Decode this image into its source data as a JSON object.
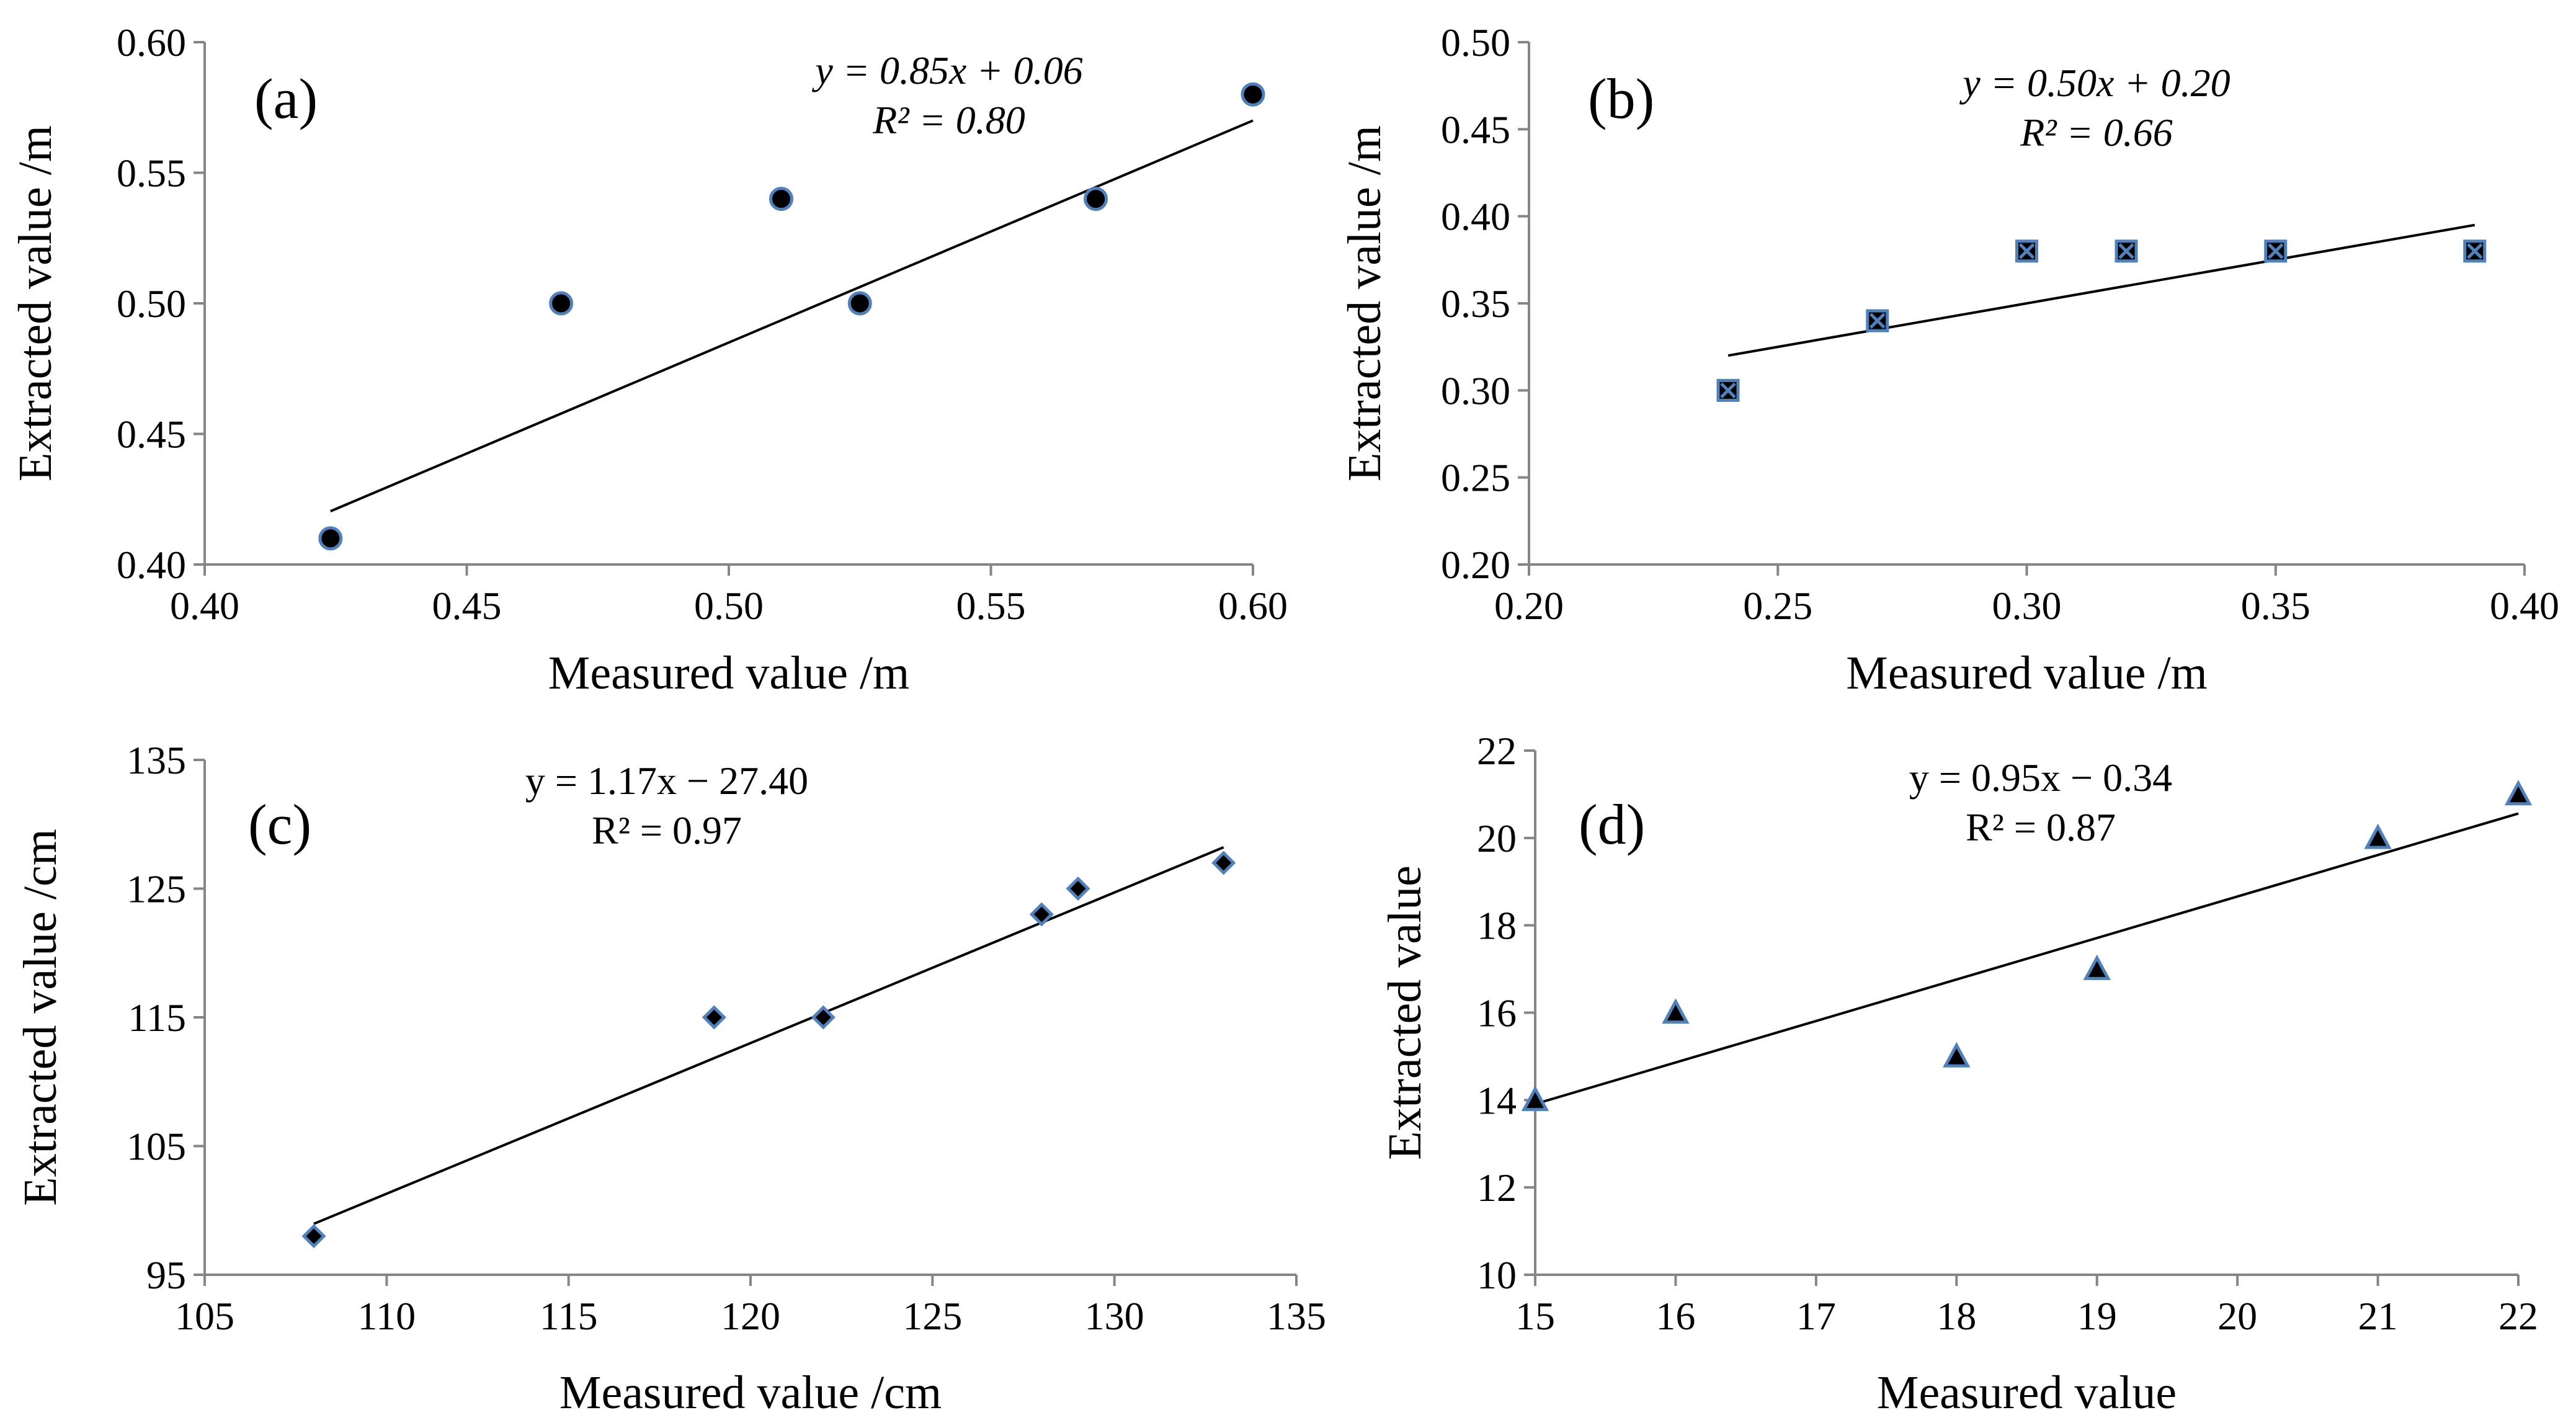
{
  "chart_data": [
    {
      "type": "scatter",
      "panel_label": "(a)",
      "xlabel": "Measured value /m",
      "ylabel": "Extracted value /m",
      "xlim": [
        0.4,
        0.6
      ],
      "ylim": [
        0.4,
        0.6
      ],
      "xticks": [
        "0.40",
        "0.45",
        "0.50",
        "0.55",
        "0.60"
      ],
      "yticks": [
        "0.40",
        "0.45",
        "0.50",
        "0.55",
        "0.60"
      ],
      "x": [
        0.424,
        0.468,
        0.51,
        0.525,
        0.57,
        0.6
      ],
      "y": [
        0.41,
        0.5,
        0.54,
        0.5,
        0.54,
        0.58
      ],
      "marker": "circle",
      "marker_color": "#000000",
      "marker_edge": "#4f81bd",
      "trendline": {
        "slope": 0.85,
        "intercept": 0.06,
        "x_range": [
          0.424,
          0.6
        ]
      },
      "equation": "y = 0.85x + 0.06",
      "r2": "R² = 0.80",
      "equation_style": "italic"
    },
    {
      "type": "scatter",
      "panel_label": "(b)",
      "xlabel": "Measured value /m",
      "ylabel": "Extracted value /m",
      "xlim": [
        0.2,
        0.4
      ],
      "ylim": [
        0.2,
        0.5
      ],
      "xticks": [
        "0.20",
        "0.25",
        "0.30",
        "0.35",
        "0.40"
      ],
      "yticks": [
        "0.20",
        "0.25",
        "0.30",
        "0.35",
        "0.40",
        "0.45",
        "0.50"
      ],
      "x": [
        0.24,
        0.27,
        0.3,
        0.32,
        0.35,
        0.39
      ],
      "y": [
        0.3,
        0.34,
        0.38,
        0.38,
        0.38,
        0.38
      ],
      "marker": "x-square",
      "marker_color": "#000000",
      "marker_edge": "#4f81bd",
      "trendline": {
        "slope": 0.5,
        "intercept": 0.2,
        "x_range": [
          0.24,
          0.39
        ]
      },
      "equation": "y = 0.50x + 0.20",
      "r2": "R² = 0.66",
      "equation_style": "italic"
    },
    {
      "type": "scatter",
      "panel_label": "(c)",
      "xlabel": "Measured value /cm",
      "ylabel": "Extracted value /cm",
      "xlim": [
        105,
        135
      ],
      "ylim": [
        95,
        135
      ],
      "xticks": [
        "105",
        "110",
        "115",
        "120",
        "125",
        "130",
        "135"
      ],
      "yticks": [
        "95",
        "105",
        "115",
        "125",
        "135"
      ],
      "x": [
        108,
        119,
        122,
        128,
        129,
        133
      ],
      "y": [
        98,
        115,
        115,
        123,
        125,
        127
      ],
      "marker": "diamond",
      "marker_color": "#000000",
      "marker_edge": "#4f81bd",
      "trendline": {
        "slope": 1.17,
        "intercept": -27.4,
        "x_range": [
          108,
          133
        ]
      },
      "equation": "y = 1.17x − 27.40",
      "r2": "R² = 0.97",
      "equation_style": "mixed"
    },
    {
      "type": "scatter",
      "panel_label": "(d)",
      "xlabel": "Measured value",
      "ylabel": "Extracted value",
      "xlim": [
        15,
        22
      ],
      "ylim": [
        10,
        22
      ],
      "xticks": [
        "15",
        "16",
        "17",
        "18",
        "19",
        "20",
        "21",
        "22"
      ],
      "yticks": [
        "10",
        "12",
        "14",
        "16",
        "18",
        "20",
        "22"
      ],
      "x": [
        15,
        16,
        18,
        19,
        21,
        22
      ],
      "y": [
        14,
        16,
        15,
        17,
        20,
        21
      ],
      "marker": "triangle",
      "marker_color": "#000000",
      "marker_edge": "#4f81bd",
      "trendline": {
        "slope": 0.95,
        "intercept": -0.34,
        "x_range": [
          15,
          22
        ]
      },
      "equation": "y = 0.95x − 0.34",
      "r2": "R² = 0.87",
      "equation_style": "mixed"
    }
  ]
}
